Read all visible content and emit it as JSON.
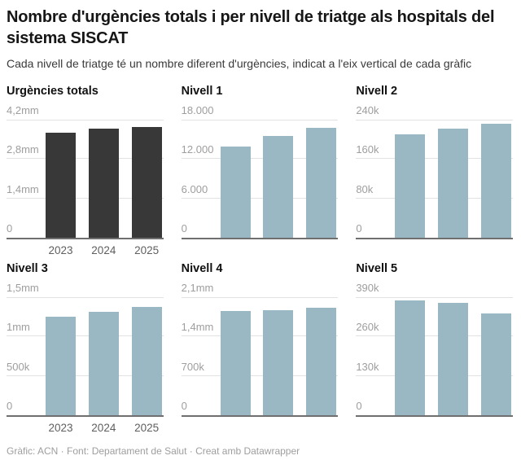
{
  "header": {
    "title": "Nombre d'urgències totals i per nivell de triatge als hospitals del sistema SISCAT",
    "subtitle": "Cada nivell de triatge té un nombre diferent d'urgències, indicat a l'eix vertical de cada gràfic"
  },
  "footer": {
    "attribution": "Gràfic: ACN · Font: Departament de Salut · Creat amb Datawrapper"
  },
  "colors": {
    "total_bar": "#383838",
    "level_bar": "#9ab8c3",
    "gridline": "#e2e2e2",
    "axis_line": "#6f6f6f",
    "tick_label": "#9e9e9e",
    "year_label": "#5f5f5f"
  },
  "chart_data": [
    {
      "type": "bar",
      "title": "Urgències totals",
      "categories": [
        "2023",
        "2024",
        "2025"
      ],
      "values": [
        3730000,
        3880000,
        3950000
      ],
      "xlabel": "",
      "ylabel": "",
      "ylim": [
        0,
        4200000
      ],
      "ytick_values": [
        0,
        1400000,
        2800000,
        4200000
      ],
      "ytick_labels": [
        "0",
        "1,4mm",
        "2,8mm",
        "4,2mm"
      ],
      "grid": true,
      "legend": false,
      "bar_color": "#383838",
      "show_x_labels": true
    },
    {
      "type": "bar",
      "title": "Nivell 1",
      "categories": [
        "2023",
        "2024",
        "2025"
      ],
      "values": [
        13900,
        15500,
        16800
      ],
      "xlabel": "",
      "ylabel": "",
      "ylim": [
        0,
        18000
      ],
      "ytick_values": [
        0,
        6000,
        12000,
        18000
      ],
      "ytick_labels": [
        "0",
        "6.000",
        "12.000",
        "18.000"
      ],
      "grid": true,
      "legend": false,
      "bar_color": "#9ab8c3",
      "show_x_labels": false
    },
    {
      "type": "bar",
      "title": "Nivell 2",
      "categories": [
        "2023",
        "2024",
        "2025"
      ],
      "values": [
        210000,
        222000,
        231000
      ],
      "xlabel": "",
      "ylabel": "",
      "ylim": [
        0,
        240000
      ],
      "ytick_values": [
        0,
        80000,
        160000,
        240000
      ],
      "ytick_labels": [
        "0",
        "80k",
        "160k",
        "240k"
      ],
      "grid": true,
      "legend": false,
      "bar_color": "#9ab8c3",
      "show_x_labels": false
    },
    {
      "type": "bar",
      "title": "Nivell 3",
      "categories": [
        "2023",
        "2024",
        "2025"
      ],
      "values": [
        1250000,
        1310000,
        1380000
      ],
      "xlabel": "",
      "ylabel": "",
      "ylim": [
        0,
        1500000
      ],
      "ytick_values": [
        0,
        500000,
        1000000,
        1500000
      ],
      "ytick_labels": [
        "0",
        "500k",
        "1mm",
        "1,5mm"
      ],
      "grid": true,
      "legend": false,
      "bar_color": "#9ab8c3",
      "show_x_labels": true
    },
    {
      "type": "bar",
      "title": "Nivell 4",
      "categories": [
        "2023",
        "2024",
        "2025"
      ],
      "values": [
        1850000,
        1875000,
        1910000
      ],
      "xlabel": "",
      "ylabel": "",
      "ylim": [
        0,
        2100000
      ],
      "ytick_values": [
        0,
        700000,
        1400000,
        2100000
      ],
      "ytick_labels": [
        "0",
        "700k",
        "1,4mm",
        "2,1mm"
      ],
      "grid": true,
      "legend": false,
      "bar_color": "#9ab8c3",
      "show_x_labels": false
    },
    {
      "type": "bar",
      "title": "Nivell 5",
      "categories": [
        "2023",
        "2024",
        "2025"
      ],
      "values": [
        378000,
        370000,
        336000
      ],
      "xlabel": "",
      "ylabel": "",
      "ylim": [
        0,
        390000
      ],
      "ytick_values": [
        0,
        130000,
        260000,
        390000
      ],
      "ytick_labels": [
        "0",
        "130k",
        "260k",
        "390k"
      ],
      "grid": true,
      "legend": false,
      "bar_color": "#9ab8c3",
      "show_x_labels": false
    }
  ]
}
